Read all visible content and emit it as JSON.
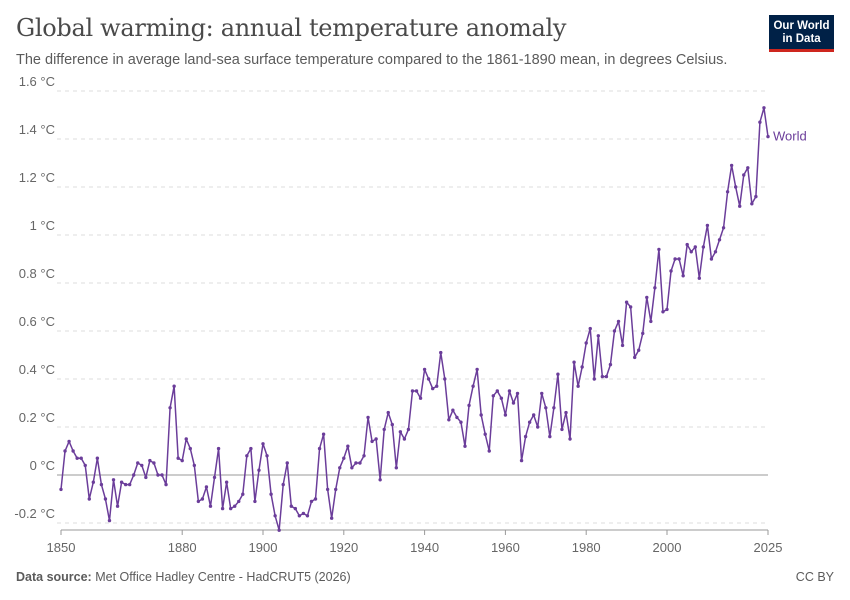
{
  "header": {
    "title": "Global warming: annual temperature anomaly",
    "subtitle": "The difference in average land-sea surface temperature compared to the 1861-1890 mean, in degrees Celsius."
  },
  "logo": {
    "line1": "Our World",
    "line2": "in Data"
  },
  "footer": {
    "source_label": "Data source:",
    "source_text": "Met Office Hadley Centre - HadCRUT5 (2026)",
    "license": "CC BY"
  },
  "colors": {
    "series": "#6b3d9a",
    "grid": "#dddddd",
    "axis": "#999999"
  },
  "chart_data": {
    "type": "line",
    "title": "Global warming: annual temperature anomaly",
    "ylim": [
      -0.2,
      1.6
    ],
    "yticks": [
      -0.2,
      0,
      0.2,
      0.4,
      0.6,
      0.8,
      1,
      1.2,
      1.4,
      1.6
    ],
    "ytick_labels": [
      "-0.2 °C",
      "0 °C",
      "0.2 °C",
      "0.4 °C",
      "0.6 °C",
      "0.8 °C",
      "1 °C",
      "1.2 °C",
      "1.4 °C",
      "1.6 °C"
    ],
    "xlim": [
      1850,
      2025
    ],
    "xticks": [
      1850,
      1880,
      1900,
      1920,
      1940,
      1960,
      1980,
      2000,
      2025
    ],
    "xtick_labels": [
      "1850",
      "1880",
      "1900",
      "1920",
      "1940",
      "1960",
      "1980",
      "2000",
      "2025"
    ],
    "grid": "horizontal dashed",
    "series": [
      {
        "name": "World",
        "color": "#6b3d9a",
        "x": [
          1850,
          1851,
          1852,
          1853,
          1854,
          1855,
          1856,
          1857,
          1858,
          1859,
          1860,
          1861,
          1862,
          1863,
          1864,
          1865,
          1866,
          1867,
          1868,
          1869,
          1870,
          1871,
          1872,
          1873,
          1874,
          1875,
          1876,
          1877,
          1878,
          1879,
          1880,
          1881,
          1882,
          1883,
          1884,
          1885,
          1886,
          1887,
          1888,
          1889,
          1890,
          1891,
          1892,
          1893,
          1894,
          1895,
          1896,
          1897,
          1898,
          1899,
          1900,
          1901,
          1902,
          1903,
          1904,
          1905,
          1906,
          1907,
          1908,
          1909,
          1910,
          1911,
          1912,
          1913,
          1914,
          1915,
          1916,
          1917,
          1918,
          1919,
          1920,
          1921,
          1922,
          1923,
          1924,
          1925,
          1926,
          1927,
          1928,
          1929,
          1930,
          1931,
          1932,
          1933,
          1934,
          1935,
          1936,
          1937,
          1938,
          1939,
          1940,
          1941,
          1942,
          1943,
          1944,
          1945,
          1946,
          1947,
          1948,
          1949,
          1950,
          1951,
          1952,
          1953,
          1954,
          1955,
          1956,
          1957,
          1958,
          1959,
          1960,
          1961,
          1962,
          1963,
          1964,
          1965,
          1966,
          1967,
          1968,
          1969,
          1970,
          1971,
          1972,
          1973,
          1974,
          1975,
          1976,
          1977,
          1978,
          1979,
          1980,
          1981,
          1982,
          1983,
          1984,
          1985,
          1986,
          1987,
          1988,
          1989,
          1990,
          1991,
          1992,
          1993,
          1994,
          1995,
          1996,
          1997,
          1998,
          1999,
          2000,
          2001,
          2002,
          2003,
          2004,
          2005,
          2006,
          2007,
          2008,
          2009,
          2010,
          2011,
          2012,
          2013,
          2014,
          2015,
          2016,
          2017,
          2018,
          2019,
          2020,
          2021,
          2022,
          2023,
          2024,
          2025
        ],
        "values": [
          -0.06,
          0.1,
          0.14,
          0.1,
          0.07,
          0.07,
          0.04,
          -0.1,
          -0.03,
          0.07,
          -0.04,
          -0.1,
          -0.19,
          -0.02,
          -0.13,
          -0.03,
          -0.04,
          -0.04,
          0.0,
          0.05,
          0.04,
          -0.01,
          0.06,
          0.05,
          0.0,
          0.0,
          -0.04,
          0.28,
          0.37,
          0.07,
          0.06,
          0.15,
          0.11,
          0.04,
          -0.11,
          -0.1,
          -0.05,
          -0.13,
          -0.01,
          0.11,
          -0.14,
          -0.03,
          -0.14,
          -0.13,
          -0.11,
          -0.08,
          0.08,
          0.11,
          -0.11,
          0.02,
          0.13,
          0.08,
          -0.08,
          -0.17,
          -0.23,
          -0.04,
          0.05,
          -0.13,
          -0.14,
          -0.17,
          -0.16,
          -0.17,
          -0.11,
          -0.1,
          0.11,
          0.17,
          -0.06,
          -0.18,
          -0.06,
          0.03,
          0.07,
          0.12,
          0.03,
          0.05,
          0.05,
          0.08,
          0.24,
          0.14,
          0.15,
          -0.02,
          0.19,
          0.26,
          0.21,
          0.03,
          0.18,
          0.15,
          0.19,
          0.35,
          0.35,
          0.32,
          0.44,
          0.4,
          0.36,
          0.37,
          0.51,
          0.4,
          0.23,
          0.27,
          0.24,
          0.22,
          0.12,
          0.29,
          0.37,
          0.44,
          0.25,
          0.17,
          0.1,
          0.33,
          0.35,
          0.32,
          0.25,
          0.35,
          0.3,
          0.34,
          0.06,
          0.16,
          0.22,
          0.25,
          0.2,
          0.34,
          0.28,
          0.16,
          0.28,
          0.42,
          0.19,
          0.26,
          0.15,
          0.47,
          0.37,
          0.45,
          0.55,
          0.61,
          0.4,
          0.58,
          0.41,
          0.41,
          0.46,
          0.6,
          0.64,
          0.54,
          0.72,
          0.7,
          0.49,
          0.52,
          0.59,
          0.74,
          0.64,
          0.78,
          0.94,
          0.68,
          0.69,
          0.85,
          0.9,
          0.9,
          0.83,
          0.96,
          0.93,
          0.95,
          0.82,
          0.95,
          1.04,
          0.9,
          0.93,
          0.98,
          1.03,
          1.18,
          1.29,
          1.2,
          1.12,
          1.25,
          1.28,
          1.13,
          1.16,
          1.47,
          1.53,
          1.41
        ]
      }
    ]
  }
}
